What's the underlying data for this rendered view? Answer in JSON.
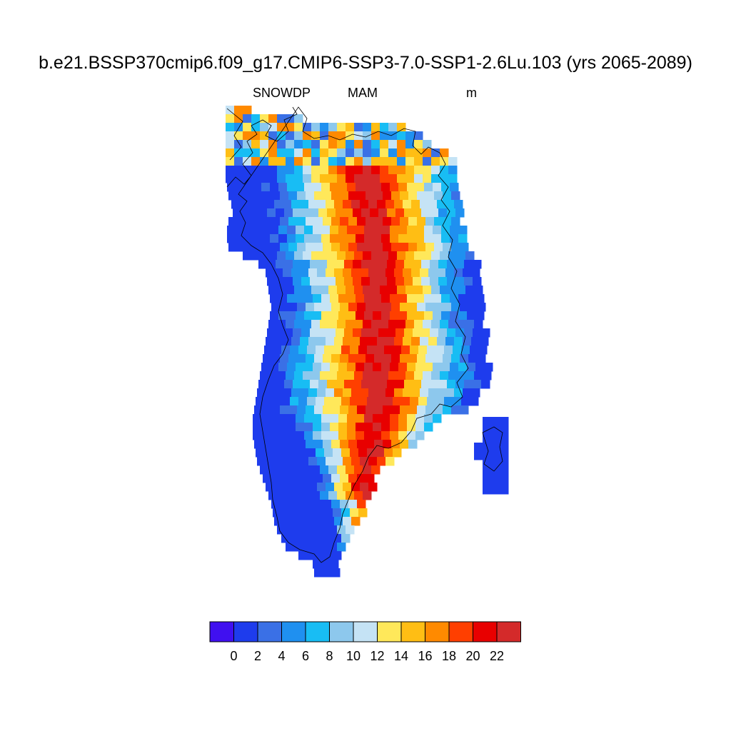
{
  "figure": {
    "title": "b.e21.BSSP370cmip6.f09_g17.CMIP6-SSP3-7.0-SSP1-2.6Lu.103 (yrs 2065-2089)",
    "variable": "SNOWDP",
    "season": "MAM",
    "units": "m"
  },
  "colorbar": {
    "labels": [
      "0",
      "2",
      "4",
      "6",
      "8",
      "10",
      "12",
      "14",
      "16",
      "18",
      "20",
      "22"
    ],
    "colors": [
      "#4010f0",
      "#1e3ced",
      "#3a70e6",
      "#1f90f0",
      "#18bdf4",
      "#8dc8ed",
      "#c5e3f5",
      "#ffe85a",
      "#ffbe14",
      "#ff8a00",
      "#ff3f00",
      "#e80000",
      "#d42a2a"
    ]
  },
  "map_features": {
    "region": "Greenland",
    "coastline": true,
    "pattern": "deepest snow (> 20 m) over the central ice sheet interior, decreasing to near 0 along the coastal margins"
  }
}
